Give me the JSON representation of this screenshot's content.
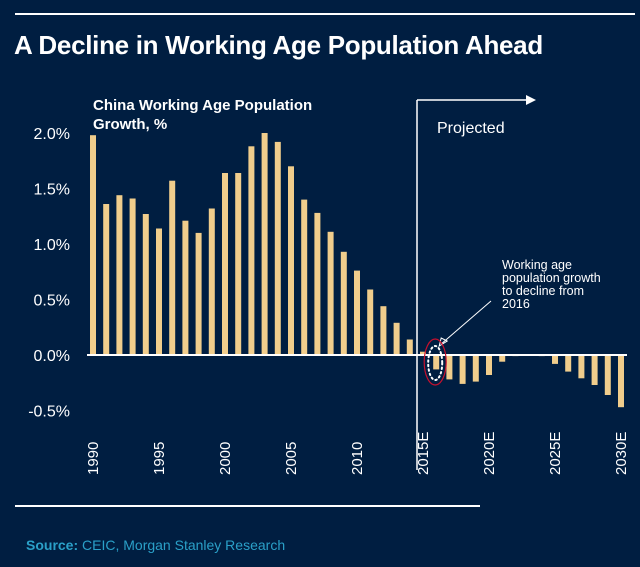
{
  "page": {
    "title": "A Decline in Working Age Population Ahead",
    "source_label": "Source:",
    "source_text": " CEIC, Morgan Stanley Research"
  },
  "colors": {
    "background": "#001e41",
    "bar": "#f0cd8c",
    "text": "#ffffff",
    "source": "#2aa0c8",
    "highlight_ellipse": "#c8102e"
  },
  "chart_data": {
    "type": "bar",
    "title": "China Working Age Population Growth, %",
    "title_lines": [
      "China Working Age Population",
      "Growth, %"
    ],
    "xlabel": "",
    "ylabel": "",
    "ylim": [
      -0.5,
      2.0
    ],
    "y_ticks": [
      2.0,
      1.5,
      1.0,
      0.5,
      0.0,
      -0.5
    ],
    "y_tick_labels": [
      "2.0%",
      "1.5%",
      "1.0%",
      "0.5%",
      "0.0%",
      "-0.5%"
    ],
    "grid": false,
    "categories": [
      "1990",
      "1991",
      "1992",
      "1993",
      "1994",
      "1995",
      "1996",
      "1997",
      "1998",
      "1999",
      "2000",
      "2001",
      "2002",
      "2003",
      "2004",
      "2005",
      "2006",
      "2007",
      "2008",
      "2009",
      "2010",
      "2011",
      "2012",
      "2013",
      "2014",
      "2015E",
      "2016E",
      "2017E",
      "2018E",
      "2019E",
      "2020E",
      "2021E",
      "2022E",
      "2023E",
      "2024E",
      "2025E",
      "2026E",
      "2027E",
      "2028E",
      "2029E",
      "2030E"
    ],
    "x_tick_labels": [
      {
        "index": 0,
        "label": "1990"
      },
      {
        "index": 5,
        "label": "1995"
      },
      {
        "index": 10,
        "label": "2000"
      },
      {
        "index": 15,
        "label": "2005"
      },
      {
        "index": 20,
        "label": "2010"
      },
      {
        "index": 25,
        "label": "2015E"
      },
      {
        "index": 30,
        "label": "2020E"
      },
      {
        "index": 35,
        "label": "2025E"
      },
      {
        "index": 40,
        "label": "2030E"
      }
    ],
    "series": [
      {
        "name": "China Working Age Population Growth, %",
        "values": [
          1.98,
          1.36,
          1.44,
          1.41,
          1.27,
          1.14,
          1.57,
          1.21,
          1.1,
          1.32,
          1.64,
          1.64,
          1.88,
          2.0,
          1.92,
          1.7,
          1.4,
          1.28,
          1.11,
          0.93,
          0.76,
          0.59,
          0.44,
          0.29,
          0.14,
          0.03,
          -0.13,
          -0.22,
          -0.26,
          -0.24,
          -0.18,
          -0.06,
          -0.01,
          0.0,
          -0.01,
          -0.08,
          -0.15,
          -0.21,
          -0.27,
          -0.36,
          -0.47
        ]
      }
    ],
    "projection_start_index": 25,
    "annotations": {
      "projected_label": "Projected",
      "callout_lines": [
        "Working age",
        "population growth",
        "to decline from",
        "2016"
      ],
      "callout_target_index": 26
    }
  }
}
